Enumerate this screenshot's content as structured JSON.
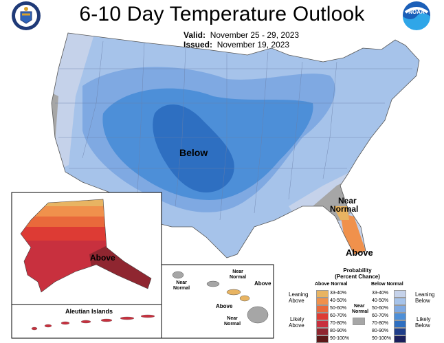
{
  "title": "6-10 Day Temperature Outlook",
  "valid_label": "Valid:",
  "valid_value": "November 25 - 29, 2023",
  "issued_label": "Issued:",
  "issued_value": "November 19, 2023",
  "map_labels": {
    "below": "Below",
    "near_normal_1": "Near",
    "near_normal_2": "Normal",
    "above_se": "Above",
    "above_ak": "Above",
    "aleutian": "Aleutian Islands",
    "hi_near_normal_a1": "Near",
    "hi_near_normal_a2": "Normal",
    "hi_near_normal_b1": "Near",
    "hi_near_normal_b2": "Normal",
    "hi_above": "Above",
    "hi_above_2": "Above",
    "hi_near_normal_c1": "Near",
    "hi_near_normal_c2": "Normal"
  },
  "legend": {
    "title": "Probability",
    "subtitle": "(Percent Chance)",
    "above_head": "Above Normal",
    "below_head": "Below Normal",
    "near_head_1": "Near",
    "near_head_2": "Normal",
    "leaning_above_1": "Leaning",
    "leaning_above_2": "Above",
    "likely_above_1": "Likely",
    "likely_above_2": "Above",
    "leaning_below_1": "Leaning",
    "leaning_below_2": "Below",
    "likely_below_1": "Likely",
    "likely_below_2": "Below",
    "ranges": [
      "33-40%",
      "40-50%",
      "50-60%",
      "60-70%",
      "70-80%",
      "80-90%",
      "90-100%"
    ],
    "above_colors": [
      "#e8b462",
      "#f0914c",
      "#e9693b",
      "#dd3b34",
      "#c8303e",
      "#8f2630",
      "#5c1818"
    ],
    "below_colors": [
      "#c5d2ea",
      "#a6c3ea",
      "#7fa9e2",
      "#4d8fd8",
      "#2e6fc1",
      "#1f3e8a",
      "#1a1f5c"
    ],
    "near_color": "#a6a6a6"
  },
  "logos": {
    "left": "commerce-seal-icon",
    "right": "noaa-logo-icon"
  }
}
